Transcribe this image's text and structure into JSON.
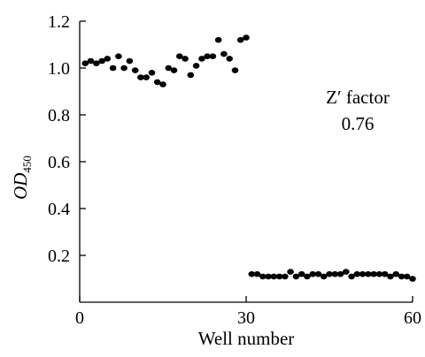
{
  "chart_data": {
    "type": "scatter",
    "title": "",
    "xlabel": "Well number",
    "ylabel": {
      "main": "OD",
      "subscript": "450"
    },
    "xlim": [
      0,
      60
    ],
    "ylim": [
      0,
      1.2
    ],
    "x_ticks": [
      {
        "value": 0,
        "label": "0"
      },
      {
        "value": 30,
        "label": "30"
      },
      {
        "value": 60,
        "label": "60"
      }
    ],
    "y_ticks": [
      {
        "value": 0.2,
        "label": "0.2"
      },
      {
        "value": 0.4,
        "label": "0.4"
      },
      {
        "value": 0.6,
        "label": "0.6"
      },
      {
        "value": 0.8,
        "label": "0.8"
      },
      {
        "value": 1.0,
        "label": "1.0"
      },
      {
        "value": 1.2,
        "label": "1.2"
      }
    ],
    "grid": false,
    "legend": "none",
    "annotation": {
      "label": "Z′ factor",
      "value": "0.76"
    },
    "marker_color": "#000000",
    "series": [
      {
        "points": [
          [
            1,
            1.02
          ],
          [
            2,
            1.03
          ],
          [
            3,
            1.02
          ],
          [
            4,
            1.03
          ],
          [
            5,
            1.04
          ],
          [
            6,
            1.0
          ],
          [
            7,
            1.05
          ],
          [
            8,
            1.0
          ],
          [
            9,
            1.03
          ],
          [
            10,
            0.99
          ],
          [
            11,
            0.96
          ],
          [
            12,
            0.96
          ],
          [
            13,
            0.98
          ],
          [
            14,
            0.94
          ],
          [
            15,
            0.93
          ],
          [
            16,
            1.0
          ],
          [
            17,
            0.99
          ],
          [
            18,
            1.05
          ],
          [
            19,
            1.04
          ],
          [
            20,
            0.97
          ],
          [
            21,
            1.01
          ],
          [
            22,
            1.04
          ],
          [
            23,
            1.05
          ],
          [
            24,
            1.05
          ],
          [
            25,
            1.12
          ],
          [
            26,
            1.06
          ],
          [
            27,
            1.04
          ],
          [
            28,
            0.99
          ],
          [
            29,
            1.12
          ],
          [
            30,
            1.13
          ]
        ]
      },
      {
        "points": [
          [
            31,
            0.12
          ],
          [
            32,
            0.12
          ],
          [
            33,
            0.11
          ],
          [
            34,
            0.11
          ],
          [
            35,
            0.11
          ],
          [
            36,
            0.11
          ],
          [
            37,
            0.11
          ],
          [
            38,
            0.13
          ],
          [
            39,
            0.11
          ],
          [
            40,
            0.12
          ],
          [
            41,
            0.11
          ],
          [
            42,
            0.12
          ],
          [
            43,
            0.12
          ],
          [
            44,
            0.11
          ],
          [
            45,
            0.12
          ],
          [
            46,
            0.12
          ],
          [
            47,
            0.12
          ],
          [
            48,
            0.13
          ],
          [
            49,
            0.11
          ],
          [
            50,
            0.12
          ],
          [
            51,
            0.12
          ],
          [
            52,
            0.12
          ],
          [
            53,
            0.12
          ],
          [
            54,
            0.12
          ],
          [
            55,
            0.12
          ],
          [
            56,
            0.11
          ],
          [
            57,
            0.12
          ],
          [
            58,
            0.11
          ],
          [
            59,
            0.11
          ],
          [
            60,
            0.1
          ]
        ]
      }
    ]
  }
}
